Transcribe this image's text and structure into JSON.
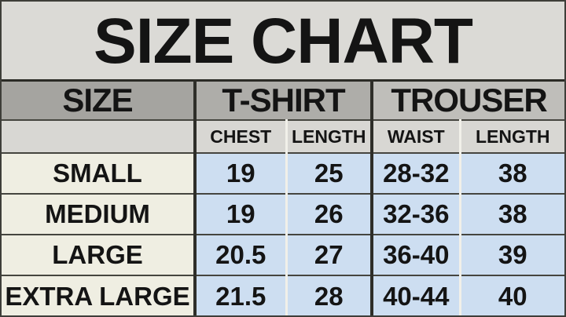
{
  "title": "SIZE CHART",
  "table": {
    "col_headers": {
      "size": "SIZE",
      "tshirt": "T-SHIRT",
      "trouser": "TROUSER"
    },
    "sub_headers": {
      "chest": "CHEST",
      "tshirt_length": "LENGTH",
      "waist": "WAIST",
      "trouser_length": "LENGTH"
    },
    "rows": [
      {
        "size": "SMALL",
        "chest": "19",
        "tshirt_length": "25",
        "waist": "28-32",
        "trouser_length": "38"
      },
      {
        "size": "MEDIUM",
        "chest": "19",
        "tshirt_length": "26",
        "waist": "32-36",
        "trouser_length": "38"
      },
      {
        "size": "LARGE",
        "chest": "20.5",
        "tshirt_length": "27",
        "waist": "36-40",
        "trouser_length": "39"
      },
      {
        "size": "EXTRA LARGE",
        "chest": "21.5",
        "tshirt_length": "28",
        "waist": "40-44",
        "trouser_length": "40"
      }
    ]
  },
  "colors": {
    "page_background": "#dbdad6",
    "group_header_gray": "#a5a4a0",
    "subheader_gray": "#d8d7d3",
    "size_column_cream": "#efeee2",
    "value_cell_blue": "#cddef1",
    "border_dark": "#2e2e29",
    "text": "#141414"
  },
  "chart_data": {
    "type": "table",
    "title": "SIZE CHART",
    "columns": [
      "SIZE",
      "T-SHIRT CHEST",
      "T-SHIRT LENGTH",
      "TROUSER WAIST",
      "TROUSER LENGTH"
    ],
    "rows": [
      [
        "SMALL",
        "19",
        "25",
        "28-32",
        "38"
      ],
      [
        "MEDIUM",
        "19",
        "26",
        "32-36",
        "38"
      ],
      [
        "LARGE",
        "20.5",
        "27",
        "36-40",
        "39"
      ],
      [
        "EXTRA LARGE",
        "21.5",
        "28",
        "40-44",
        "40"
      ]
    ]
  }
}
